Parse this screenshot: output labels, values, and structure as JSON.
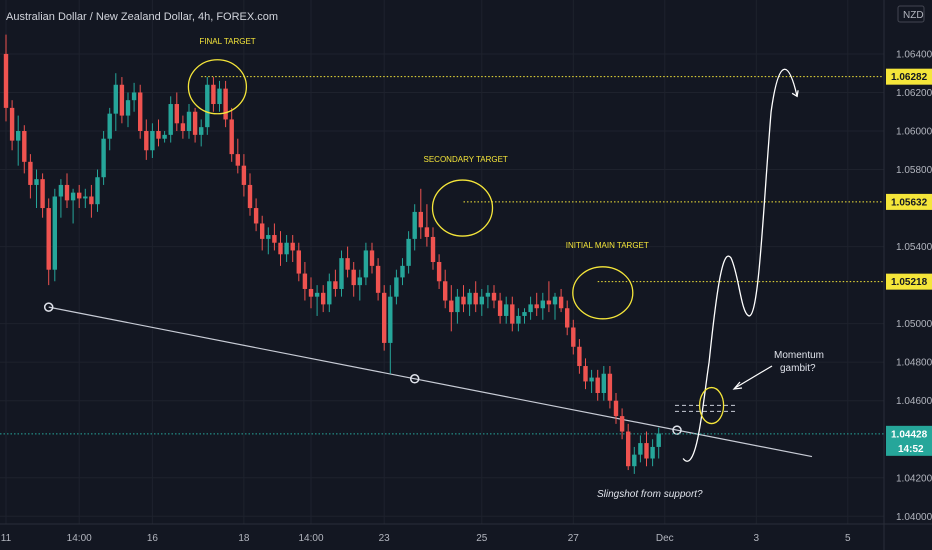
{
  "chart_data": {
    "type": "candlestick",
    "title": "Australian Dollar / New Zealand Dollar, 4h, FOREX.com",
    "currency": "NZD",
    "ylim": [
      1.0396,
      1.0668
    ],
    "y_ticks": [
      1.04,
      1.042,
      1.046,
      1.048,
      1.05,
      1.054,
      1.058,
      1.06,
      1.062,
      1.064
    ],
    "y_tick_labels": [
      "1.04000",
      "1.04200",
      "1.04600",
      "1.04800",
      "1.05000",
      "1.05400",
      "1.05800",
      "1.06000",
      "1.06200",
      "1.06400"
    ],
    "x_ticks": [
      {
        "label": "11",
        "index": 0
      },
      {
        "label": "14:00",
        "index": 12
      },
      {
        "label": "16",
        "index": 24
      },
      {
        "label": "18",
        "index": 39
      },
      {
        "label": "14:00",
        "index": 50
      },
      {
        "label": "23",
        "index": 62
      },
      {
        "label": "25",
        "index": 78
      },
      {
        "label": "27",
        "index": 93
      },
      {
        "label": "Dec",
        "index": 108
      },
      {
        "label": "3",
        "index": 123
      },
      {
        "label": "5",
        "index": 138
      }
    ],
    "candles": [
      [
        1.064,
        1.065,
        1.0605,
        1.0612
      ],
      [
        1.0612,
        1.0616,
        1.059,
        1.0595
      ],
      [
        1.0595,
        1.0608,
        1.0582,
        1.06
      ],
      [
        1.06,
        1.0603,
        1.0578,
        1.0584
      ],
      [
        1.0584,
        1.0588,
        1.0565,
        1.0572
      ],
      [
        1.0572,
        1.058,
        1.056,
        1.0575
      ],
      [
        1.0575,
        1.0578,
        1.0555,
        1.056
      ],
      [
        1.056,
        1.0565,
        1.052,
        1.0528
      ],
      [
        1.0528,
        1.057,
        1.0522,
        1.0566
      ],
      [
        1.0566,
        1.0575,
        1.0555,
        1.0572
      ],
      [
        1.0572,
        1.0578,
        1.056,
        1.0564
      ],
      [
        1.0564,
        1.057,
        1.0552,
        1.0568
      ],
      [
        1.0568,
        1.0572,
        1.056,
        1.0565
      ],
      [
        1.0565,
        1.057,
        1.056,
        1.0566
      ],
      [
        1.0566,
        1.0572,
        1.0555,
        1.0562
      ],
      [
        1.0562,
        1.058,
        1.0558,
        1.0576
      ],
      [
        1.0576,
        1.06,
        1.0572,
        1.0596
      ],
      [
        1.0596,
        1.0612,
        1.059,
        1.0609
      ],
      [
        1.0609,
        1.063,
        1.06,
        1.0624
      ],
      [
        1.0624,
        1.0628,
        1.0604,
        1.0608
      ],
      [
        1.0608,
        1.062,
        1.0602,
        1.0616
      ],
      [
        1.0616,
        1.0625,
        1.061,
        1.062
      ],
      [
        1.062,
        1.0624,
        1.0596,
        1.06
      ],
      [
        1.06,
        1.0606,
        1.0585,
        1.059
      ],
      [
        1.059,
        1.0604,
        1.0586,
        1.06
      ],
      [
        1.06,
        1.0606,
        1.0592,
        1.0596
      ],
      [
        1.0596,
        1.06,
        1.0594,
        1.0598
      ],
      [
        1.0598,
        1.0618,
        1.0594,
        1.0614
      ],
      [
        1.0614,
        1.062,
        1.06,
        1.0604
      ],
      [
        1.0604,
        1.0608,
        1.0596,
        1.06
      ],
      [
        1.06,
        1.0614,
        1.0596,
        1.061
      ],
      [
        1.061,
        1.0612,
        1.0594,
        1.0598
      ],
      [
        1.0598,
        1.0606,
        1.0592,
        1.0602
      ],
      [
        1.0602,
        1.0628,
        1.0598,
        1.0624
      ],
      [
        1.0624,
        1.0628,
        1.061,
        1.0614
      ],
      [
        1.0614,
        1.0626,
        1.061,
        1.0622
      ],
      [
        1.0622,
        1.0626,
        1.0602,
        1.0606
      ],
      [
        1.0606,
        1.0612,
        1.0584,
        1.0588
      ],
      [
        1.0588,
        1.0596,
        1.0578,
        1.0582
      ],
      [
        1.0582,
        1.0588,
        1.0566,
        1.0572
      ],
      [
        1.0572,
        1.0578,
        1.0556,
        1.056
      ],
      [
        1.056,
        1.0565,
        1.0548,
        1.0552
      ],
      [
        1.0552,
        1.0556,
        1.0538,
        1.0544
      ],
      [
        1.0544,
        1.055,
        1.0536,
        1.0546
      ],
      [
        1.0546,
        1.0552,
        1.0538,
        1.0542
      ],
      [
        1.0542,
        1.0548,
        1.053,
        1.0536
      ],
      [
        1.0536,
        1.0546,
        1.0532,
        1.0542
      ],
      [
        1.0542,
        1.0546,
        1.0532,
        1.0538
      ],
      [
        1.0538,
        1.0542,
        1.0522,
        1.0526
      ],
      [
        1.0526,
        1.0532,
        1.0512,
        1.0518
      ],
      [
        1.0518,
        1.0524,
        1.0508,
        1.0514
      ],
      [
        1.0514,
        1.052,
        1.0504,
        1.0516
      ],
      [
        1.0516,
        1.052,
        1.0506,
        1.051
      ],
      [
        1.051,
        1.0526,
        1.0506,
        1.0522
      ],
      [
        1.0522,
        1.0528,
        1.0514,
        1.0518
      ],
      [
        1.0518,
        1.0538,
        1.0514,
        1.0534
      ],
      [
        1.0534,
        1.054,
        1.0524,
        1.0528
      ],
      [
        1.0528,
        1.0532,
        1.0514,
        1.052
      ],
      [
        1.052,
        1.0528,
        1.0512,
        1.0524
      ],
      [
        1.0524,
        1.0542,
        1.052,
        1.0538
      ],
      [
        1.0538,
        1.0542,
        1.0526,
        1.053
      ],
      [
        1.053,
        1.0534,
        1.0512,
        1.0516
      ],
      [
        1.0516,
        1.052,
        1.0486,
        1.049
      ],
      [
        1.049,
        1.052,
        1.0474,
        1.0514
      ],
      [
        1.0514,
        1.0528,
        1.051,
        1.0524
      ],
      [
        1.0524,
        1.0534,
        1.052,
        1.053
      ],
      [
        1.053,
        1.0548,
        1.0526,
        1.0544
      ],
      [
        1.0544,
        1.0562,
        1.0538,
        1.0558
      ],
      [
        1.0558,
        1.057,
        1.0544,
        1.055
      ],
      [
        1.055,
        1.0562,
        1.054,
        1.0545
      ],
      [
        1.0545,
        1.055,
        1.0528,
        1.0532
      ],
      [
        1.0532,
        1.0536,
        1.0518,
        1.0522
      ],
      [
        1.0522,
        1.0528,
        1.0508,
        1.0512
      ],
      [
        1.0512,
        1.052,
        1.0496,
        1.0506
      ],
      [
        1.0506,
        1.0518,
        1.05,
        1.0514
      ],
      [
        1.0514,
        1.052,
        1.0506,
        1.051
      ],
      [
        1.051,
        1.0518,
        1.0504,
        1.0516
      ],
      [
        1.0516,
        1.0522,
        1.0506,
        1.051
      ],
      [
        1.051,
        1.0518,
        1.0504,
        1.0514
      ],
      [
        1.0514,
        1.052,
        1.0508,
        1.0516
      ],
      [
        1.0516,
        1.052,
        1.0508,
        1.0512
      ],
      [
        1.0512,
        1.0516,
        1.05,
        1.0504
      ],
      [
        1.0504,
        1.0514,
        1.05,
        1.051
      ],
      [
        1.051,
        1.0514,
        1.0496,
        1.05
      ],
      [
        1.05,
        1.0508,
        1.0496,
        1.0504
      ],
      [
        1.0504,
        1.0508,
        1.05,
        1.0506
      ],
      [
        1.0506,
        1.0514,
        1.0502,
        1.051
      ],
      [
        1.051,
        1.0516,
        1.0504,
        1.0508
      ],
      [
        1.0508,
        1.0516,
        1.0502,
        1.0512
      ],
      [
        1.0512,
        1.0522,
        1.0506,
        1.051
      ],
      [
        1.051,
        1.0516,
        1.0502,
        1.0514
      ],
      [
        1.0514,
        1.0518,
        1.0506,
        1.0508
      ],
      [
        1.0508,
        1.0512,
        1.0494,
        1.0498
      ],
      [
        1.0498,
        1.0502,
        1.0484,
        1.0488
      ],
      [
        1.0488,
        1.0492,
        1.0474,
        1.0478
      ],
      [
        1.0478,
        1.0482,
        1.0466,
        1.047
      ],
      [
        1.047,
        1.0476,
        1.0464,
        1.0472
      ],
      [
        1.0472,
        1.0476,
        1.046,
        1.0464
      ],
      [
        1.0464,
        1.0478,
        1.046,
        1.0474
      ],
      [
        1.0474,
        1.0478,
        1.0456,
        1.046
      ],
      [
        1.046,
        1.0464,
        1.0448,
        1.0452
      ],
      [
        1.0452,
        1.0456,
        1.044,
        1.0444
      ],
      [
        1.0444,
        1.0448,
        1.0424,
        1.0426
      ],
      [
        1.0426,
        1.0436,
        1.0422,
        1.0432
      ],
      [
        1.0432,
        1.0442,
        1.0428,
        1.0438
      ],
      [
        1.0438,
        1.0444,
        1.0426,
        1.043
      ],
      [
        1.043,
        1.044,
        1.0426,
        1.0436
      ],
      [
        1.0436,
        1.0446,
        1.043,
        1.0443
      ]
    ],
    "colors": {
      "up": "#26a69a",
      "down": "#ef5350",
      "background": "#131722",
      "annotation": "#f5e63a"
    },
    "horizontal_levels": [
      {
        "value": 1.06282,
        "label": "1.06282",
        "color": "#f5e63a"
      },
      {
        "value": 1.05632,
        "label": "1.05632",
        "color": "#f5e63a"
      },
      {
        "value": 1.05218,
        "label": "1.05218",
        "color": "#f5e63a"
      }
    ],
    "current_price": {
      "value": 1.04428,
      "label": "1.04428",
      "countdown": "14:52",
      "color": "#26a69a"
    },
    "annotations": [
      {
        "text": "FINAL TARGET",
        "index": 22
      },
      {
        "text": "SECONDARY TARGET",
        "index": 70
      },
      {
        "text": "INITIAL MAIN TARGET",
        "index": 94
      }
    ],
    "notes": [
      {
        "text": "Momentum",
        "style": "normal"
      },
      {
        "text": "gambit?",
        "style": "normal"
      },
      {
        "text": "Slingshot from support?",
        "style": "italic"
      }
    ]
  }
}
